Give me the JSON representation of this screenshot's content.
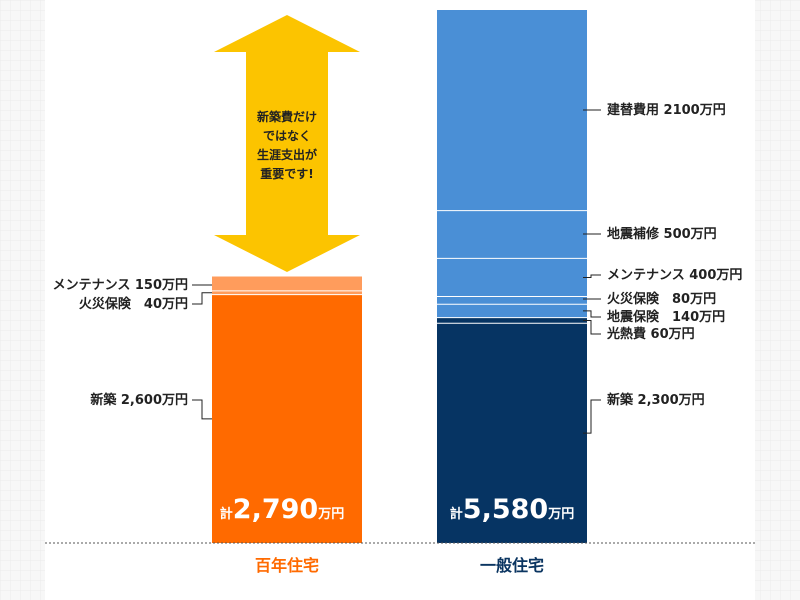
{
  "colors": {
    "orange": "#ff6a00",
    "orange_light": "#ff9c5c",
    "blue": "#4a8fd6",
    "navy": "#063463",
    "arrow": "#fcc400",
    "orange_text": "#ff6a00",
    "navy_text": "#0b3561"
  },
  "callout": {
    "lines": [
      "新築費だけ",
      "ではなく",
      "生涯支出が",
      "重要です!"
    ]
  },
  "totals": {
    "prefix": "計",
    "suffix": "万円",
    "hyakunen": "2,790",
    "ippan": "5,580"
  },
  "chart_data": {
    "type": "bar",
    "stacked": true,
    "categories": [
      "百年住宅",
      "一般住宅"
    ],
    "ylim": [
      0,
      5580
    ],
    "grid": false,
    "series": [
      {
        "name": "新築",
        "values": [
          2600,
          2300
        ],
        "labels": [
          "新築 2,600万円",
          "新築 2,300万円"
        ]
      },
      {
        "name": "光熱費",
        "values": [
          0,
          60
        ],
        "labels": [
          "",
          "光熱費 60万円"
        ]
      },
      {
        "name": "地震保険",
        "values": [
          0,
          140
        ],
        "labels": [
          "",
          "地震保険　140万円"
        ]
      },
      {
        "name": "火災保険",
        "values": [
          40,
          80
        ],
        "labels": [
          "火災保険　40万円",
          "火災保険　80万円"
        ]
      },
      {
        "name": "メンテナンス",
        "values": [
          150,
          400
        ],
        "labels": [
          "メンテナンス 150万円",
          "メンテナンス 400万円"
        ]
      },
      {
        "name": "地震補修",
        "values": [
          0,
          500
        ],
        "labels": [
          "",
          "地震補修 500万円"
        ]
      },
      {
        "name": "建替費用",
        "values": [
          0,
          2100
        ],
        "labels": [
          "",
          "建替費用 2100万円"
        ]
      }
    ]
  }
}
